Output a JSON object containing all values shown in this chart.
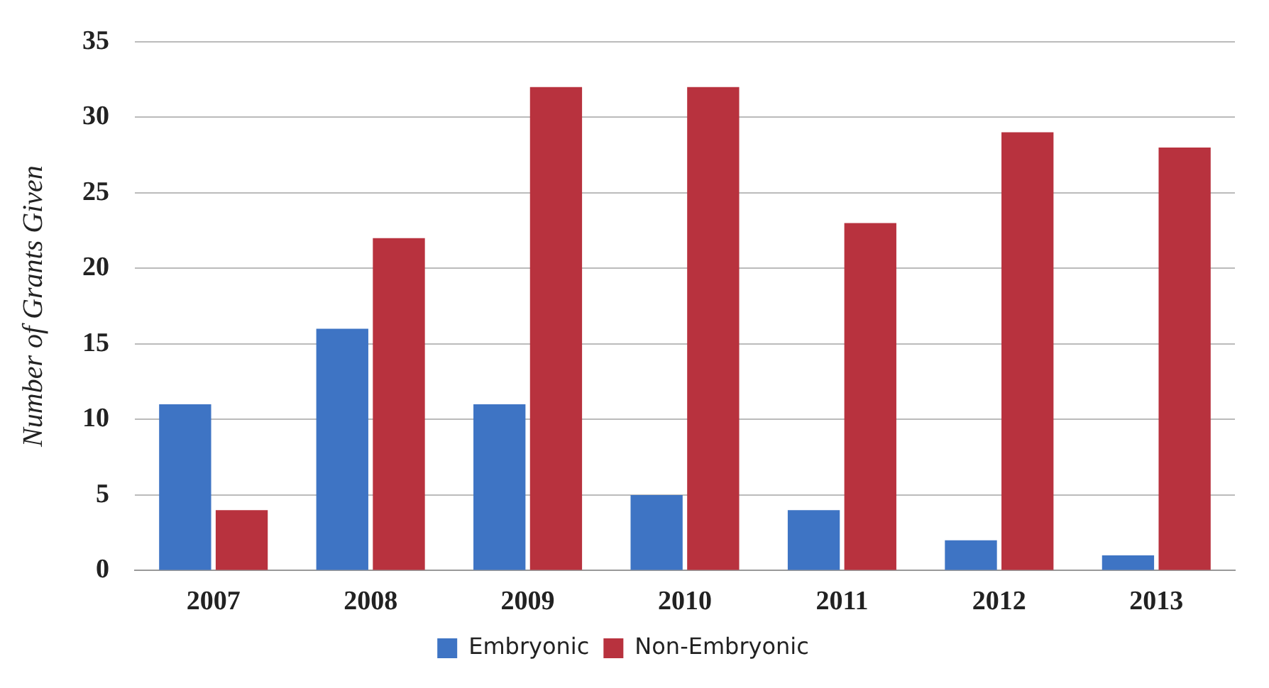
{
  "chart_data": {
    "type": "bar",
    "ylabel": "Number of Grants Given",
    "categories": [
      "2007",
      "2008",
      "2009",
      "2010",
      "2011",
      "2012",
      "2013"
    ],
    "series": [
      {
        "name": "Embryonic",
        "color": "#3e74c4",
        "values": [
          11,
          16,
          11,
          5,
          4,
          2,
          1
        ]
      },
      {
        "name": "Non-Embryonic",
        "color": "#b8323e",
        "values": [
          4,
          22,
          32,
          32,
          23,
          29,
          28
        ]
      }
    ],
    "ylim": [
      0,
      35
    ],
    "yticks": [
      0,
      5,
      10,
      15,
      20,
      25,
      30,
      35
    ],
    "grid": "y",
    "legend": "bottom"
  }
}
